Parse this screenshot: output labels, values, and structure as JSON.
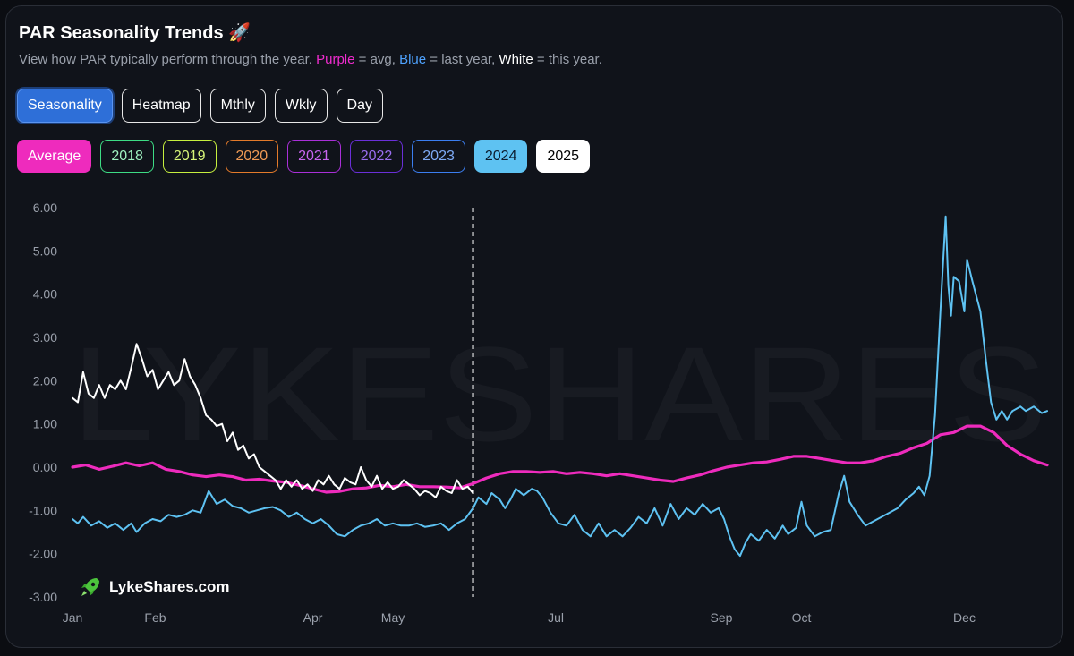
{
  "header": {
    "title": "PAR Seasonality Trends 🚀",
    "subtitle_prefix": "View how PAR typically perform through the year. ",
    "subtitle_purple": "Purple",
    "subtitle_avg": " = avg, ",
    "subtitle_blue": "Blue",
    "subtitle_last": " = last year, ",
    "subtitle_white": "White",
    "subtitle_this": " = this year."
  },
  "view_buttons": [
    {
      "label": "Seasonality",
      "active": true
    },
    {
      "label": "Heatmap",
      "active": false
    },
    {
      "label": "Mthly",
      "active": false
    },
    {
      "label": "Wkly",
      "active": false
    },
    {
      "label": "Day",
      "active": false
    }
  ],
  "year_chips": [
    {
      "label": "Average",
      "color": "#ee2bbd",
      "text": "#ffffff",
      "filled": true
    },
    {
      "label": "2018",
      "color": "#3ddc84",
      "text": "#9ff2c0",
      "filled": false
    },
    {
      "label": "2019",
      "color": "#c6ef3e",
      "text": "#d9f77a",
      "filled": false
    },
    {
      "label": "2020",
      "color": "#e37a2a",
      "text": "#ef9a55",
      "filled": false
    },
    {
      "label": "2021",
      "color": "#a92fd8",
      "text": "#c865ee",
      "filled": false
    },
    {
      "label": "2022",
      "color": "#6a2fd8",
      "text": "#9a6ef0",
      "filled": false
    },
    {
      "label": "2023",
      "color": "#3b7ef0",
      "text": "#7eaaf5",
      "filled": false
    },
    {
      "label": "2024",
      "color": "#5ec2f2",
      "text": "#0b1c2e",
      "filled": true
    },
    {
      "label": "2025",
      "color": "#ffffff",
      "text": "#000000",
      "filled": true
    }
  ],
  "brand": {
    "name": "LykeShares.com",
    "icon": "rocket-icon",
    "watermark": "LYKESHARES"
  },
  "chart_data": {
    "type": "line",
    "y_ticks": [
      "6.00",
      "5.00",
      "4.00",
      "3.00",
      "2.00",
      "1.00",
      "0.00",
      "-1.00",
      "-2.00",
      "-3.00"
    ],
    "ylim": [
      -3,
      6
    ],
    "xlim": [
      0,
      365
    ],
    "x_ticks": [
      {
        "label": "Jan",
        "day": 0
      },
      {
        "label": "Feb",
        "day": 31
      },
      {
        "label": "Apr",
        "day": 90
      },
      {
        "label": "May",
        "day": 120
      },
      {
        "label": "Jul",
        "day": 181
      },
      {
        "label": "Sep",
        "day": 243
      },
      {
        "label": "Oct",
        "day": 273
      },
      {
        "label": "Dec",
        "day": 334
      }
    ],
    "today_marker_day": 150,
    "series": [
      {
        "name": "Average",
        "color": "#ee2bbd",
        "width": 3.2,
        "points": [
          [
            0,
            0.0
          ],
          [
            5,
            0.05
          ],
          [
            10,
            -0.05
          ],
          [
            15,
            0.02
          ],
          [
            20,
            0.1
          ],
          [
            25,
            0.03
          ],
          [
            30,
            0.1
          ],
          [
            35,
            -0.05
          ],
          [
            40,
            -0.1
          ],
          [
            45,
            -0.18
          ],
          [
            50,
            -0.22
          ],
          [
            55,
            -0.18
          ],
          [
            60,
            -0.22
          ],
          [
            65,
            -0.3
          ],
          [
            70,
            -0.28
          ],
          [
            75,
            -0.32
          ],
          [
            80,
            -0.35
          ],
          [
            85,
            -0.42
          ],
          [
            90,
            -0.5
          ],
          [
            95,
            -0.58
          ],
          [
            100,
            -0.56
          ],
          [
            105,
            -0.5
          ],
          [
            110,
            -0.48
          ],
          [
            115,
            -0.42
          ],
          [
            120,
            -0.45
          ],
          [
            125,
            -0.4
          ],
          [
            130,
            -0.45
          ],
          [
            135,
            -0.45
          ],
          [
            140,
            -0.46
          ],
          [
            145,
            -0.48
          ],
          [
            150,
            -0.38
          ],
          [
            155,
            -0.25
          ],
          [
            160,
            -0.15
          ],
          [
            165,
            -0.1
          ],
          [
            170,
            -0.1
          ],
          [
            175,
            -0.12
          ],
          [
            180,
            -0.1
          ],
          [
            185,
            -0.15
          ],
          [
            190,
            -0.12
          ],
          [
            195,
            -0.15
          ],
          [
            200,
            -0.2
          ],
          [
            205,
            -0.15
          ],
          [
            210,
            -0.2
          ],
          [
            215,
            -0.25
          ],
          [
            220,
            -0.3
          ],
          [
            225,
            -0.33
          ],
          [
            230,
            -0.25
          ],
          [
            235,
            -0.18
          ],
          [
            240,
            -0.08
          ],
          [
            245,
            0.0
          ],
          [
            250,
            0.05
          ],
          [
            255,
            0.1
          ],
          [
            260,
            0.12
          ],
          [
            265,
            0.18
          ],
          [
            270,
            0.25
          ],
          [
            275,
            0.25
          ],
          [
            280,
            0.2
          ],
          [
            285,
            0.15
          ],
          [
            290,
            0.1
          ],
          [
            295,
            0.1
          ],
          [
            300,
            0.15
          ],
          [
            305,
            0.25
          ],
          [
            310,
            0.32
          ],
          [
            315,
            0.45
          ],
          [
            320,
            0.55
          ],
          [
            325,
            0.75
          ],
          [
            330,
            0.8
          ],
          [
            335,
            0.95
          ],
          [
            340,
            0.95
          ],
          [
            345,
            0.8
          ],
          [
            350,
            0.5
          ],
          [
            355,
            0.3
          ],
          [
            360,
            0.15
          ],
          [
            365,
            0.05
          ]
        ]
      },
      {
        "name": "2024",
        "color": "#5ec2f2",
        "width": 2,
        "points": [
          [
            0,
            -1.2
          ],
          [
            2,
            -1.3
          ],
          [
            4,
            -1.15
          ],
          [
            7,
            -1.35
          ],
          [
            10,
            -1.25
          ],
          [
            13,
            -1.4
          ],
          [
            16,
            -1.3
          ],
          [
            19,
            -1.45
          ],
          [
            22,
            -1.3
          ],
          [
            24,
            -1.5
          ],
          [
            27,
            -1.3
          ],
          [
            30,
            -1.2
          ],
          [
            33,
            -1.25
          ],
          [
            36,
            -1.1
          ],
          [
            39,
            -1.15
          ],
          [
            42,
            -1.1
          ],
          [
            45,
            -1.0
          ],
          [
            48,
            -1.05
          ],
          [
            51,
            -0.55
          ],
          [
            54,
            -0.85
          ],
          [
            57,
            -0.75
          ],
          [
            60,
            -0.9
          ],
          [
            63,
            -0.95
          ],
          [
            66,
            -1.05
          ],
          [
            69,
            -1.0
          ],
          [
            72,
            -0.95
          ],
          [
            75,
            -0.92
          ],
          [
            78,
            -1.0
          ],
          [
            81,
            -1.15
          ],
          [
            84,
            -1.05
          ],
          [
            87,
            -1.2
          ],
          [
            90,
            -1.3
          ],
          [
            93,
            -1.2
          ],
          [
            96,
            -1.35
          ],
          [
            99,
            -1.55
          ],
          [
            102,
            -1.6
          ],
          [
            105,
            -1.45
          ],
          [
            108,
            -1.35
          ],
          [
            111,
            -1.3
          ],
          [
            114,
            -1.2
          ],
          [
            117,
            -1.35
          ],
          [
            120,
            -1.3
          ],
          [
            123,
            -1.35
          ],
          [
            126,
            -1.35
          ],
          [
            129,
            -1.3
          ],
          [
            132,
            -1.38
          ],
          [
            135,
            -1.35
          ],
          [
            138,
            -1.3
          ],
          [
            141,
            -1.45
          ],
          [
            144,
            -1.3
          ],
          [
            147,
            -1.2
          ],
          [
            150,
            -0.95
          ],
          [
            152,
            -0.7
          ],
          [
            155,
            -0.85
          ],
          [
            157,
            -0.6
          ],
          [
            160,
            -0.75
          ],
          [
            162,
            -0.95
          ],
          [
            164,
            -0.75
          ],
          [
            166,
            -0.5
          ],
          [
            169,
            -0.65
          ],
          [
            172,
            -0.5
          ],
          [
            174,
            -0.55
          ],
          [
            176,
            -0.7
          ],
          [
            179,
            -1.05
          ],
          [
            182,
            -1.3
          ],
          [
            185,
            -1.35
          ],
          [
            188,
            -1.1
          ],
          [
            191,
            -1.45
          ],
          [
            194,
            -1.6
          ],
          [
            197,
            -1.3
          ],
          [
            200,
            -1.6
          ],
          [
            203,
            -1.45
          ],
          [
            206,
            -1.6
          ],
          [
            209,
            -1.4
          ],
          [
            212,
            -1.15
          ],
          [
            215,
            -1.3
          ],
          [
            218,
            -0.95
          ],
          [
            221,
            -1.35
          ],
          [
            224,
            -0.85
          ],
          [
            227,
            -1.2
          ],
          [
            230,
            -0.95
          ],
          [
            233,
            -1.1
          ],
          [
            236,
            -0.85
          ],
          [
            239,
            -1.05
          ],
          [
            242,
            -0.95
          ],
          [
            244,
            -1.2
          ],
          [
            246,
            -1.6
          ],
          [
            248,
            -1.9
          ],
          [
            250,
            -2.05
          ],
          [
            252,
            -1.75
          ],
          [
            254,
            -1.55
          ],
          [
            257,
            -1.7
          ],
          [
            260,
            -1.45
          ],
          [
            263,
            -1.65
          ],
          [
            266,
            -1.35
          ],
          [
            268,
            -1.55
          ],
          [
            271,
            -1.4
          ],
          [
            273,
            -0.8
          ],
          [
            275,
            -1.35
          ],
          [
            278,
            -1.6
          ],
          [
            281,
            -1.5
          ],
          [
            284,
            -1.45
          ],
          [
            287,
            -0.6
          ],
          [
            289,
            -0.2
          ],
          [
            291,
            -0.8
          ],
          [
            294,
            -1.1
          ],
          [
            297,
            -1.35
          ],
          [
            300,
            -1.25
          ],
          [
            303,
            -1.15
          ],
          [
            306,
            -1.05
          ],
          [
            309,
            -0.95
          ],
          [
            312,
            -0.75
          ],
          [
            315,
            -0.6
          ],
          [
            317,
            -0.45
          ],
          [
            319,
            -0.65
          ],
          [
            321,
            -0.2
          ],
          [
            323,
            1.2
          ],
          [
            325,
            3.6
          ],
          [
            327,
            5.8
          ],
          [
            328,
            4.2
          ],
          [
            329,
            3.5
          ],
          [
            330,
            4.4
          ],
          [
            332,
            4.3
          ],
          [
            334,
            3.6
          ],
          [
            335,
            4.8
          ],
          [
            337,
            4.3
          ],
          [
            340,
            3.6
          ],
          [
            342,
            2.5
          ],
          [
            344,
            1.5
          ],
          [
            346,
            1.1
          ],
          [
            348,
            1.3
          ],
          [
            350,
            1.1
          ],
          [
            352,
            1.3
          ],
          [
            355,
            1.4
          ],
          [
            357,
            1.3
          ],
          [
            360,
            1.4
          ],
          [
            363,
            1.25
          ],
          [
            365,
            1.3
          ]
        ]
      },
      {
        "name": "2025",
        "color": "#ffffff",
        "width": 2,
        "points": [
          [
            0,
            1.6
          ],
          [
            2,
            1.5
          ],
          [
            4,
            2.2
          ],
          [
            6,
            1.7
          ],
          [
            8,
            1.6
          ],
          [
            10,
            1.9
          ],
          [
            12,
            1.6
          ],
          [
            14,
            1.9
          ],
          [
            16,
            1.8
          ],
          [
            18,
            2.0
          ],
          [
            20,
            1.8
          ],
          [
            22,
            2.3
          ],
          [
            24,
            2.85
          ],
          [
            26,
            2.5
          ],
          [
            28,
            2.1
          ],
          [
            30,
            2.25
          ],
          [
            32,
            1.8
          ],
          [
            34,
            2.0
          ],
          [
            36,
            2.2
          ],
          [
            38,
            1.9
          ],
          [
            40,
            2.0
          ],
          [
            42,
            2.5
          ],
          [
            44,
            2.1
          ],
          [
            46,
            1.9
          ],
          [
            48,
            1.6
          ],
          [
            50,
            1.2
          ],
          [
            52,
            1.1
          ],
          [
            54,
            0.95
          ],
          [
            56,
            1.0
          ],
          [
            58,
            0.6
          ],
          [
            60,
            0.8
          ],
          [
            62,
            0.4
          ],
          [
            64,
            0.5
          ],
          [
            66,
            0.2
          ],
          [
            68,
            0.3
          ],
          [
            70,
            0.0
          ],
          [
            72,
            -0.1
          ],
          [
            74,
            -0.2
          ],
          [
            76,
            -0.3
          ],
          [
            78,
            -0.5
          ],
          [
            80,
            -0.3
          ],
          [
            82,
            -0.45
          ],
          [
            84,
            -0.3
          ],
          [
            86,
            -0.5
          ],
          [
            88,
            -0.4
          ],
          [
            90,
            -0.55
          ],
          [
            92,
            -0.3
          ],
          [
            94,
            -0.4
          ],
          [
            96,
            -0.2
          ],
          [
            98,
            -0.4
          ],
          [
            100,
            -0.5
          ],
          [
            102,
            -0.25
          ],
          [
            104,
            -0.35
          ],
          [
            106,
            -0.4
          ],
          [
            108,
            0.0
          ],
          [
            110,
            -0.3
          ],
          [
            112,
            -0.45
          ],
          [
            114,
            -0.2
          ],
          [
            116,
            -0.5
          ],
          [
            118,
            -0.35
          ],
          [
            120,
            -0.5
          ],
          [
            122,
            -0.45
          ],
          [
            124,
            -0.3
          ],
          [
            126,
            -0.4
          ],
          [
            128,
            -0.5
          ],
          [
            130,
            -0.65
          ],
          [
            132,
            -0.55
          ],
          [
            134,
            -0.6
          ],
          [
            136,
            -0.7
          ],
          [
            138,
            -0.45
          ],
          [
            140,
            -0.55
          ],
          [
            142,
            -0.6
          ],
          [
            144,
            -0.3
          ],
          [
            146,
            -0.5
          ],
          [
            148,
            -0.45
          ],
          [
            150,
            -0.6
          ]
        ]
      }
    ]
  }
}
